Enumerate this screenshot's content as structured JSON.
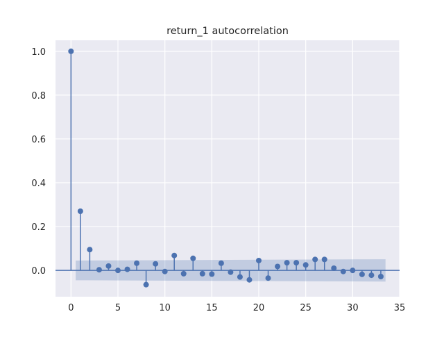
{
  "chart_data": {
    "type": "stem",
    "title": "return_1 autocorrelation",
    "xlabel": "",
    "ylabel": "",
    "xlim": [
      -1.65,
      35
    ],
    "ylim": [
      -0.12,
      1.05
    ],
    "xticks": [
      0,
      5,
      10,
      15,
      20,
      25,
      30,
      35
    ],
    "yticks": [
      0.0,
      0.2,
      0.4,
      0.6,
      0.8,
      1.0
    ],
    "xtick_labels": [
      "0",
      "5",
      "10",
      "15",
      "20",
      "25",
      "30",
      "35"
    ],
    "ytick_labels": [
      "0.0",
      "0.2",
      "0.4",
      "0.6",
      "0.8",
      "1.0"
    ],
    "grid": true,
    "legend": "none",
    "series": [
      {
        "lags": [
          0,
          1,
          2,
          3,
          4,
          5,
          6,
          7,
          8,
          9,
          10,
          11,
          12,
          13,
          14,
          15,
          16,
          17,
          18,
          19,
          20,
          21,
          22,
          23,
          24,
          25,
          26,
          27,
          28,
          29,
          30,
          31,
          32,
          33
        ],
        "values": [
          1.0,
          0.27,
          0.095,
          0.003,
          0.02,
          0.0,
          0.005,
          0.033,
          -0.065,
          0.03,
          -0.005,
          0.068,
          -0.015,
          0.055,
          -0.015,
          -0.017,
          0.033,
          -0.008,
          -0.03,
          -0.043,
          0.045,
          -0.035,
          0.018,
          0.035,
          0.035,
          0.025,
          0.05,
          0.05,
          0.01,
          -0.005,
          0.0,
          -0.018,
          -0.022,
          -0.028
        ]
      }
    ],
    "confidence_band": {
      "x_start": 0.5,
      "x_end": 33.5,
      "lower_start": -0.045,
      "upper_start": 0.045,
      "lower_end": -0.051,
      "upper_end": 0.051
    },
    "colors": {
      "axes_background": "#eaeaf2",
      "grid": "#ffffff",
      "series": "#4c72b0",
      "band": "#4c72b0"
    }
  }
}
